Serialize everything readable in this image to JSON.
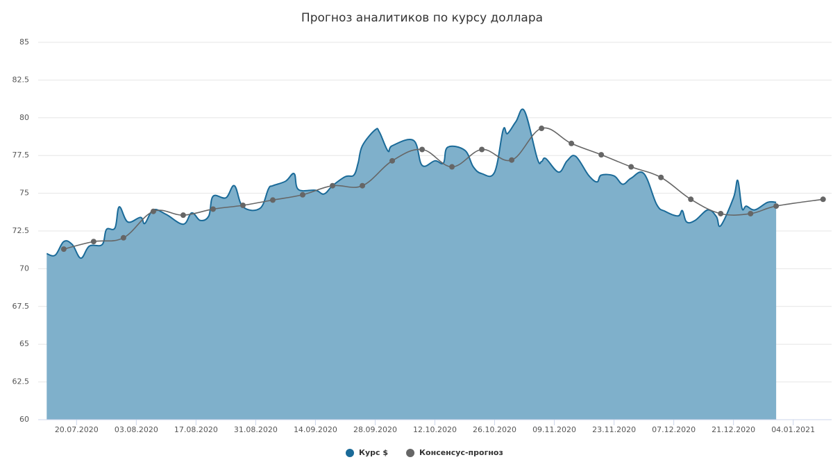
{
  "chart_data": {
    "type": "area-line",
    "title": "Прогноз аналитиков по курсу доллара",
    "xlim": [
      "2020-07-11",
      "2021-01-13"
    ],
    "xticks": [
      {
        "value": "2020-07-20",
        "label": "20.07.2020"
      },
      {
        "value": "2020-08-03",
        "label": "03.08.2020"
      },
      {
        "value": "2020-08-17",
        "label": "17.08.2020"
      },
      {
        "value": "2020-08-31",
        "label": "31.08.2020"
      },
      {
        "value": "2020-09-14",
        "label": "14.09.2020"
      },
      {
        "value": "2020-09-28",
        "label": "28.09.2020"
      },
      {
        "value": "2020-10-12",
        "label": "12.10.2020"
      },
      {
        "value": "2020-10-26",
        "label": "26.10.2020"
      },
      {
        "value": "2020-11-09",
        "label": "09.11.2020"
      },
      {
        "value": "2020-11-23",
        "label": "23.11.2020"
      },
      {
        "value": "2020-12-07",
        "label": "07.12.2020"
      },
      {
        "value": "2020-12-21",
        "label": "21.12.2020"
      },
      {
        "value": "2021-01-04",
        "label": "04.01.2021"
      }
    ],
    "ylim": [
      60,
      85
    ],
    "yticks": [
      60,
      62.5,
      65,
      67.5,
      70,
      72.5,
      75,
      77.5,
      80,
      82.5,
      85
    ],
    "grid": true,
    "series": [
      {
        "name": "Курс $",
        "type": "area",
        "color": "#1a6a98",
        "fill": "#7fb0cb",
        "x": [
          "2020-07-13",
          "2020-07-15",
          "2020-07-17",
          "2020-07-19",
          "2020-07-21",
          "2020-07-23",
          "2020-07-26",
          "2020-07-27",
          "2020-07-29",
          "2020-07-30",
          "2020-08-01",
          "2020-08-04",
          "2020-08-05",
          "2020-08-07",
          "2020-08-10",
          "2020-08-14",
          "2020-08-16",
          "2020-08-18",
          "2020-08-20",
          "2020-08-21",
          "2020-08-24",
          "2020-08-26",
          "2020-08-28",
          "2020-09-01",
          "2020-09-03",
          "2020-09-04",
          "2020-09-07",
          "2020-09-09",
          "2020-09-10",
          "2020-09-14",
          "2020-09-16",
          "2020-09-18",
          "2020-09-21",
          "2020-09-23",
          "2020-09-24",
          "2020-09-25",
          "2020-09-28",
          "2020-09-29",
          "2020-10-01",
          "2020-10-02",
          "2020-10-07",
          "2020-10-09",
          "2020-10-12",
          "2020-10-14",
          "2020-10-15",
          "2020-10-19",
          "2020-10-21",
          "2020-10-23",
          "2020-10-26",
          "2020-10-28",
          "2020-10-29",
          "2020-10-31",
          "2020-11-02",
          "2020-11-05",
          "2020-11-06",
          "2020-11-07",
          "2020-11-10",
          "2020-11-12",
          "2020-11-14",
          "2020-11-17",
          "2020-11-19",
          "2020-11-20",
          "2020-11-23",
          "2020-11-25",
          "2020-11-27",
          "2020-11-30",
          "2020-12-03",
          "2020-12-05",
          "2020-12-08",
          "2020-12-09",
          "2020-12-10",
          "2020-12-12",
          "2020-12-15",
          "2020-12-17",
          "2020-12-18",
          "2020-12-21",
          "2020-12-22",
          "2020-12-23",
          "2020-12-24",
          "2020-12-26",
          "2020-12-29",
          "2020-12-31"
        ],
        "values": [
          71.0,
          70.9,
          71.8,
          71.6,
          70.7,
          71.5,
          71.6,
          72.6,
          72.7,
          74.1,
          73.1,
          73.4,
          73.0,
          73.9,
          73.6,
          72.95,
          73.7,
          73.2,
          73.5,
          74.8,
          74.7,
          75.5,
          74.1,
          74.0,
          75.3,
          75.5,
          75.8,
          76.3,
          75.25,
          75.2,
          74.95,
          75.5,
          76.1,
          76.2,
          77.0,
          78.15,
          79.2,
          79.05,
          77.8,
          78.15,
          78.5,
          76.85,
          77.15,
          77.0,
          78.05,
          77.85,
          76.75,
          76.3,
          76.4,
          79.2,
          78.95,
          79.75,
          80.45,
          77.3,
          77.1,
          77.3,
          76.4,
          77.15,
          77.45,
          76.2,
          75.75,
          76.2,
          76.15,
          75.6,
          76.0,
          76.3,
          74.25,
          73.8,
          73.5,
          73.85,
          73.1,
          73.2,
          73.9,
          73.45,
          72.85,
          74.7,
          75.85,
          74.0,
          74.15,
          73.9,
          74.4,
          74.4
        ]
      },
      {
        "name": "Консенсус-прогноз",
        "type": "line",
        "color": "#666666",
        "x": [
          "2020-07-17",
          "2020-07-24",
          "2020-07-31",
          "2020-08-07",
          "2020-08-14",
          "2020-08-21",
          "2020-08-28",
          "2020-09-04",
          "2020-09-11",
          "2020-09-18",
          "2020-09-25",
          "2020-10-02",
          "2020-10-09",
          "2020-10-16",
          "2020-10-23",
          "2020-10-30",
          "2020-11-06",
          "2020-11-13",
          "2020-11-20",
          "2020-11-27",
          "2020-12-04",
          "2020-12-11",
          "2020-12-18",
          "2020-12-25",
          "2020-12-31",
          "2021-01-11"
        ],
        "values": [
          71.3,
          71.8,
          72.05,
          73.8,
          73.55,
          73.95,
          74.2,
          74.55,
          74.9,
          75.5,
          75.5,
          77.15,
          77.9,
          76.75,
          77.9,
          77.2,
          79.3,
          78.3,
          77.55,
          76.75,
          76.05,
          74.6,
          73.65,
          73.65,
          74.15,
          74.6
        ]
      }
    ]
  }
}
